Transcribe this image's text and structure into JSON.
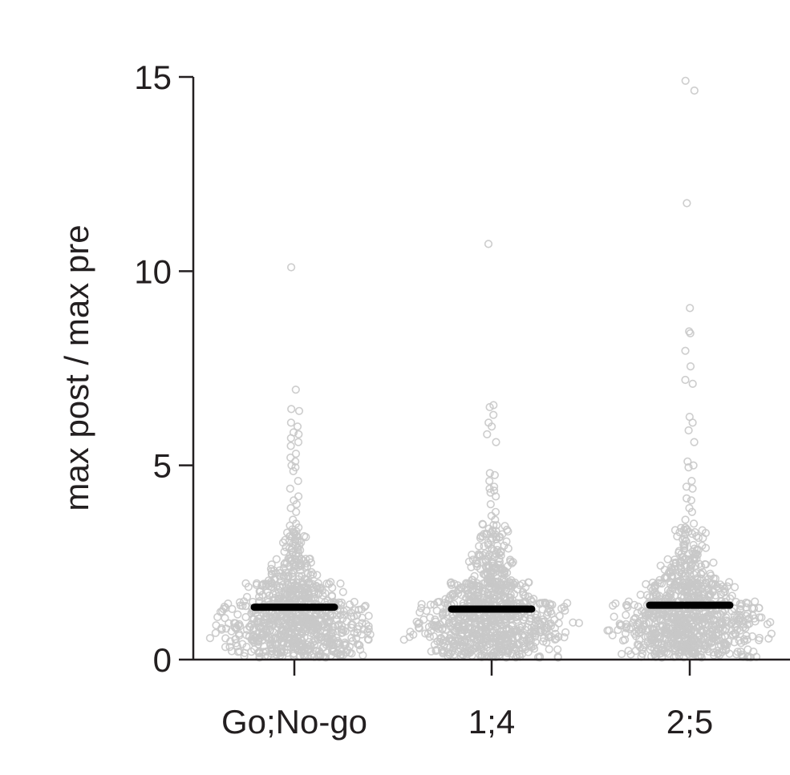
{
  "chart_data": {
    "type": "scatter",
    "subtype": "beeswarm",
    "title": "",
    "xlabel": "",
    "ylabel": "max post / max pre",
    "ylim": [
      0,
      15
    ],
    "yticks": [
      0,
      5,
      10,
      15
    ],
    "categories": [
      "Go;No-go",
      "1;4",
      "2;5"
    ],
    "point_color": "#c8c8c8",
    "median_color": "#000000",
    "grid": false,
    "legend": "none",
    "medians": [
      1.35,
      1.3,
      1.4
    ],
    "series": [
      {
        "name": "Go;No-go",
        "points": [
          10.1,
          6.95,
          6.45,
          6.4,
          6.1,
          6.0,
          5.85,
          5.8,
          5.7,
          5.6,
          5.5,
          5.3,
          5.2,
          5.1,
          5.0,
          4.95,
          4.85,
          4.6,
          4.4,
          4.2,
          4.1,
          4.0,
          3.9,
          3.8,
          3.6,
          3.5,
          3.45,
          3.4,
          3.35,
          3.3
        ],
        "bulk": [
          {
            "lo": 2.6,
            "hi": 3.3,
            "n": 40,
            "w": 0.18
          },
          {
            "lo": 2.0,
            "hi": 2.6,
            "n": 70,
            "w": 0.32
          },
          {
            "lo": 1.5,
            "hi": 2.0,
            "n": 140,
            "w": 0.55
          },
          {
            "lo": 1.0,
            "hi": 1.5,
            "n": 210,
            "w": 0.92
          },
          {
            "lo": 0.5,
            "hi": 1.0,
            "n": 230,
            "w": 0.96
          },
          {
            "lo": 0.05,
            "hi": 0.5,
            "n": 170,
            "w": 0.8
          }
        ]
      },
      {
        "name": "1;4",
        "points": [
          10.7,
          6.55,
          6.5,
          6.3,
          6.1,
          6.0,
          5.8,
          5.6,
          4.8,
          4.75,
          4.6,
          4.45,
          4.4,
          4.35,
          4.3,
          4.2,
          4.0,
          3.8,
          3.7,
          3.6
        ],
        "bulk": [
          {
            "lo": 2.7,
            "hi": 3.5,
            "n": 45,
            "w": 0.2
          },
          {
            "lo": 2.0,
            "hi": 2.7,
            "n": 80,
            "w": 0.33
          },
          {
            "lo": 1.5,
            "hi": 2.0,
            "n": 140,
            "w": 0.55
          },
          {
            "lo": 1.0,
            "hi": 1.5,
            "n": 210,
            "w": 0.92
          },
          {
            "lo": 0.5,
            "hi": 1.0,
            "n": 230,
            "w": 0.98
          },
          {
            "lo": 0.05,
            "hi": 0.5,
            "n": 160,
            "w": 0.78
          }
        ]
      },
      {
        "name": "2;5",
        "points": [
          14.9,
          14.65,
          11.75,
          9.05,
          8.45,
          8.4,
          7.95,
          7.55,
          7.2,
          7.1,
          6.25,
          6.1,
          5.9,
          5.6,
          5.1,
          5.0,
          4.95,
          4.6,
          4.45,
          4.4,
          4.15,
          4.1,
          3.9,
          3.8,
          3.6,
          3.5,
          3.4
        ],
        "bulk": [
          {
            "lo": 2.6,
            "hi": 3.4,
            "n": 45,
            "w": 0.2
          },
          {
            "lo": 2.0,
            "hi": 2.6,
            "n": 75,
            "w": 0.34
          },
          {
            "lo": 1.5,
            "hi": 2.0,
            "n": 140,
            "w": 0.56
          },
          {
            "lo": 1.0,
            "hi": 1.5,
            "n": 210,
            "w": 0.92
          },
          {
            "lo": 0.5,
            "hi": 1.0,
            "n": 230,
            "w": 0.97
          },
          {
            "lo": 0.05,
            "hi": 0.5,
            "n": 170,
            "w": 0.8
          }
        ]
      }
    ]
  }
}
